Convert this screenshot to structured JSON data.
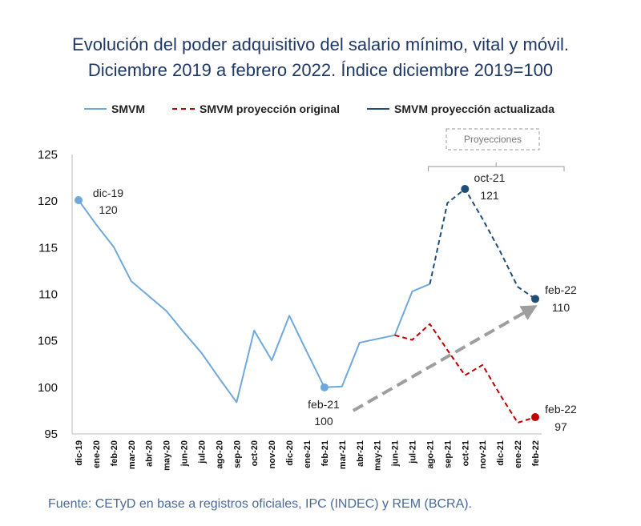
{
  "title_line1": "Evolución del poder adquisitivo del salario mínimo, vital y móvil.",
  "title_line2": "Diciembre 2019 a febrero 2022. Índice diciembre 2019=100",
  "source": "Fuente: CETyD en base a registros oficiales, IPC (INDEC) y REM (BCRA).",
  "projection_box_label": "Proyecciones",
  "colors": {
    "smvm": "#6fa8dc",
    "original": "#c00000",
    "updated": "#1f4e79",
    "arrow": "#9e9e9e",
    "title": "#1f3864"
  },
  "chart_data": {
    "type": "line",
    "categories": [
      "dic-19",
      "ene-20",
      "feb-20",
      "mar-20",
      "abr-20",
      "may-20",
      "jun-20",
      "jul-20",
      "ago-20",
      "sep-20",
      "oct-20",
      "nov-20",
      "dic-20",
      "ene-21",
      "feb-21",
      "mar-21",
      "abr-21",
      "may-21",
      "jun-21",
      "jul-21",
      "ago-21",
      "sep-21",
      "oct-21",
      "nov-21",
      "dic-21",
      "ene-22",
      "feb-22"
    ],
    "ylim": [
      95,
      125
    ],
    "yticks": [
      "95",
      "100",
      "105",
      "110",
      "115",
      "120",
      "125"
    ],
    "series": [
      {
        "name": "SMVM",
        "style": "solid",
        "values": [
          120.1,
          117.5,
          115.1,
          111.4,
          109.8,
          108.2,
          105.9,
          103.7,
          101.0,
          98.4,
          106.1,
          102.9,
          107.7,
          103.8,
          100.0,
          100.1,
          104.8,
          105.2,
          105.6,
          110.3,
          111.1,
          null,
          null,
          null,
          null,
          null,
          null
        ]
      },
      {
        "name": "SMVM proyección original",
        "style": "dashed",
        "values": [
          null,
          null,
          null,
          null,
          null,
          null,
          null,
          null,
          null,
          null,
          null,
          null,
          null,
          null,
          null,
          null,
          null,
          null,
          105.6,
          105.1,
          106.8,
          104.0,
          101.3,
          102.4,
          99.2,
          96.2,
          96.8
        ]
      },
      {
        "name": "SMVM proyección actualizada",
        "style": "dashed",
        "values": [
          null,
          null,
          null,
          null,
          null,
          null,
          null,
          null,
          null,
          null,
          null,
          null,
          null,
          null,
          null,
          null,
          null,
          null,
          null,
          null,
          111.1,
          119.8,
          121.3,
          118.1,
          114.6,
          110.8,
          109.5
        ]
      }
    ],
    "annotations": [
      {
        "category": "dic-19",
        "date": "dic-19",
        "value": "120"
      },
      {
        "category": "feb-21",
        "date": "feb-21",
        "value": "100"
      },
      {
        "category": "oct-21",
        "date": "oct-21",
        "value": "121"
      },
      {
        "category": "feb-22",
        "date": "feb-22",
        "value": "110"
      },
      {
        "category": "feb-22",
        "date": "feb-22",
        "value": "97"
      }
    ],
    "trend_arrow": {
      "from": {
        "category": "mar-21",
        "value": 97.5
      },
      "to": {
        "category": "feb-22",
        "value": 108.4
      }
    }
  }
}
